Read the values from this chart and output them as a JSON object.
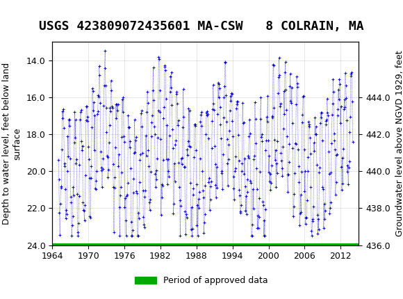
{
  "title": "USGS 423809072435601 MA-CSW   8 COLRAIN, MA",
  "ylabel_left": "Depth to water level, feet below land\nsurface",
  "ylabel_right": "Groundwater level above NGVD 1929, feet",
  "xlabel": "",
  "xlim": [
    1964,
    2015
  ],
  "ylim_left": [
    24.0,
    13.0
  ],
  "ylim_right": [
    436.0,
    447.0
  ],
  "yticks_left": [
    14.0,
    16.0,
    18.0,
    20.0,
    22.0,
    24.0
  ],
  "yticks_right": [
    444.0,
    442.0,
    440.0,
    438.0,
    436.0
  ],
  "xticks": [
    1964,
    1970,
    1976,
    1982,
    1988,
    1994,
    2000,
    2006,
    2012
  ],
  "data_color": "#0000cc",
  "grid_color": "#cccccc",
  "background_color": "#ffffff",
  "header_color": "#1a6b3c",
  "legend_label": "Period of approved data",
  "legend_color": "#00aa00",
  "title_fontsize": 13,
  "axis_fontsize": 9,
  "tick_fontsize": 9
}
